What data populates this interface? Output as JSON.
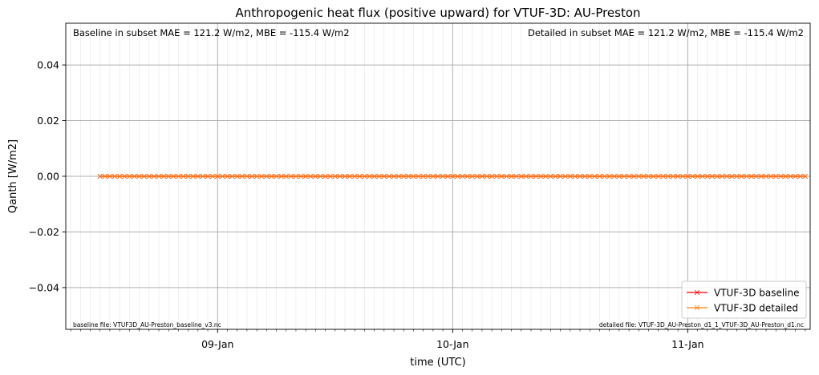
{
  "chart_data": {
    "type": "line",
    "title": "Anthropogenic heat flux (positive upward) for VTUF-3D: AU-Preston",
    "xlabel": "time (UTC)",
    "ylabel": "Qanth [W/m2]",
    "x_start": "2004-01-08T12:00",
    "x_end": "2004-01-11T12:00",
    "x_step_hours": 0.5,
    "xlim": [
      "2004-01-08T08:30",
      "2004-01-11T12:30"
    ],
    "ylim": [
      -0.055,
      0.055
    ],
    "x_ticks": [
      {
        "date": "2004-01-09",
        "label": "09-Jan"
      },
      {
        "date": "2004-01-10",
        "label": "10-Jan"
      },
      {
        "date": "2004-01-11",
        "label": "11-Jan"
      }
    ],
    "y_ticks": [
      {
        "value": 0.04,
        "label": "0.04"
      },
      {
        "value": 0.02,
        "label": "0.02"
      },
      {
        "value": 0.0,
        "label": "0.00"
      },
      {
        "value": -0.02,
        "label": "−0.02"
      },
      {
        "value": -0.04,
        "label": "−0.04"
      }
    ],
    "grid": true,
    "legend_position": "lower-right",
    "series": [
      {
        "name": "VTUF-3D baseline",
        "color": "#ff0000",
        "marker": "x",
        "value": 0.0
      },
      {
        "name": "VTUF-3D detailed",
        "color": "#ff7f0e",
        "marker": "x",
        "value": 0.0
      }
    ],
    "annotations": {
      "baseline_stats": "Baseline in subset MAE = 121.2 W/m2, MBE = -115.4 W/m2",
      "detailed_stats": "Detailed in subset MAE = 121.2 W/m2, MBE = -115.4 W/m2",
      "baseline_file": "baseline file: VTUF3D_AU-Preston_baseline_v3.nc",
      "detailed_file": "detailed file: VTUF-3D_AU-Preston_d1_1_VTUF-3D_AU-Preston_d1.nc"
    }
  }
}
